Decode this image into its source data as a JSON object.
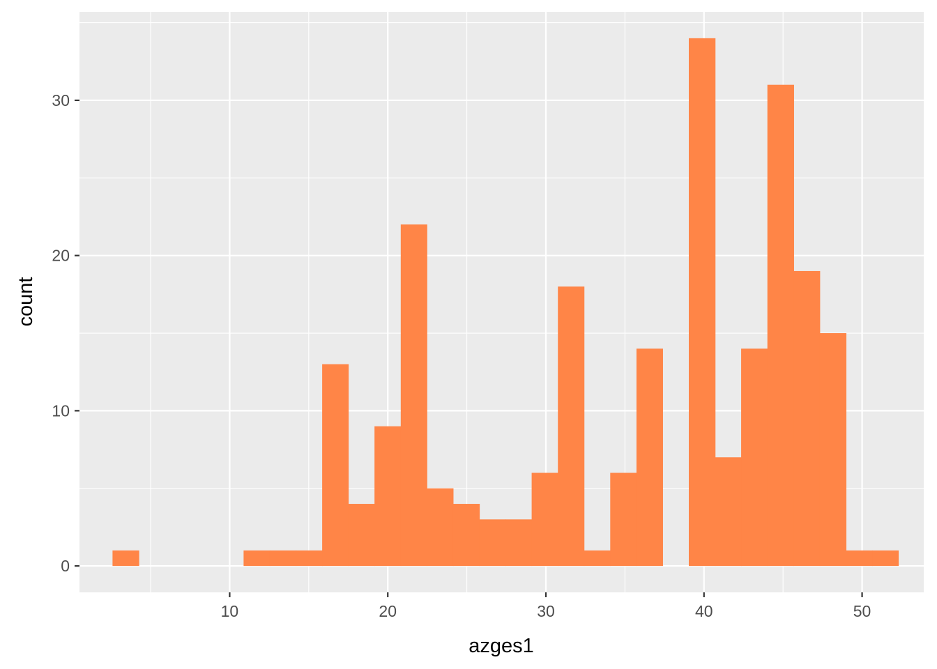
{
  "chart_data": {
    "type": "bar",
    "subtype": "histogram",
    "title": "",
    "xlabel": "azges1",
    "ylabel": "count",
    "xlim": [
      0.5,
      53.9
    ],
    "ylim": [
      -1.7,
      35.7
    ],
    "x_ticks": [
      10,
      20,
      30,
      40,
      50
    ],
    "x_tick_labels": [
      "10",
      "20",
      "30",
      "40",
      "50"
    ],
    "y_ticks": [
      0,
      10,
      20,
      30
    ],
    "y_tick_labels": [
      "0",
      "10",
      "20",
      "30"
    ],
    "bin_width": 1.657,
    "bins": [
      {
        "x_start": 2.59,
        "x_end": 4.25,
        "count": 1
      },
      {
        "x_start": 4.25,
        "x_end": 5.91,
        "count": 0
      },
      {
        "x_start": 5.91,
        "x_end": 7.56,
        "count": 0
      },
      {
        "x_start": 7.56,
        "x_end": 9.22,
        "count": 0
      },
      {
        "x_start": 9.22,
        "x_end": 10.88,
        "count": 0
      },
      {
        "x_start": 10.88,
        "x_end": 12.53,
        "count": 1
      },
      {
        "x_start": 12.53,
        "x_end": 14.19,
        "count": 1
      },
      {
        "x_start": 14.19,
        "x_end": 15.85,
        "count": 1
      },
      {
        "x_start": 15.85,
        "x_end": 17.5,
        "count": 13
      },
      {
        "x_start": 17.5,
        "x_end": 19.16,
        "count": 4
      },
      {
        "x_start": 19.16,
        "x_end": 20.82,
        "count": 9
      },
      {
        "x_start": 20.82,
        "x_end": 22.47,
        "count": 22
      },
      {
        "x_start": 22.47,
        "x_end": 24.13,
        "count": 5
      },
      {
        "x_start": 24.13,
        "x_end": 25.79,
        "count": 4
      },
      {
        "x_start": 25.79,
        "x_end": 27.44,
        "count": 3
      },
      {
        "x_start": 27.44,
        "x_end": 29.1,
        "count": 3
      },
      {
        "x_start": 29.1,
        "x_end": 30.76,
        "count": 6
      },
      {
        "x_start": 30.76,
        "x_end": 32.41,
        "count": 18
      },
      {
        "x_start": 32.41,
        "x_end": 34.07,
        "count": 1
      },
      {
        "x_start": 34.07,
        "x_end": 35.73,
        "count": 6
      },
      {
        "x_start": 35.73,
        "x_end": 37.38,
        "count": 14
      },
      {
        "x_start": 37.38,
        "x_end": 39.04,
        "count": 0
      },
      {
        "x_start": 39.04,
        "x_end": 40.7,
        "count": 34
      },
      {
        "x_start": 40.7,
        "x_end": 42.35,
        "count": 7
      },
      {
        "x_start": 42.35,
        "x_end": 44.01,
        "count": 14
      },
      {
        "x_start": 44.01,
        "x_end": 45.67,
        "count": 31
      },
      {
        "x_start": 45.67,
        "x_end": 47.32,
        "count": 19
      },
      {
        "x_start": 47.32,
        "x_end": 48.98,
        "count": 15
      },
      {
        "x_start": 48.98,
        "x_end": 50.64,
        "count": 1
      },
      {
        "x_start": 50.64,
        "x_end": 52.29,
        "count": 1
      }
    ],
    "bar_color": "#FF8547",
    "panel_background": "#EBEBEB",
    "grid": true,
    "grid_color": "#FFFFFF",
    "legend": "none"
  }
}
